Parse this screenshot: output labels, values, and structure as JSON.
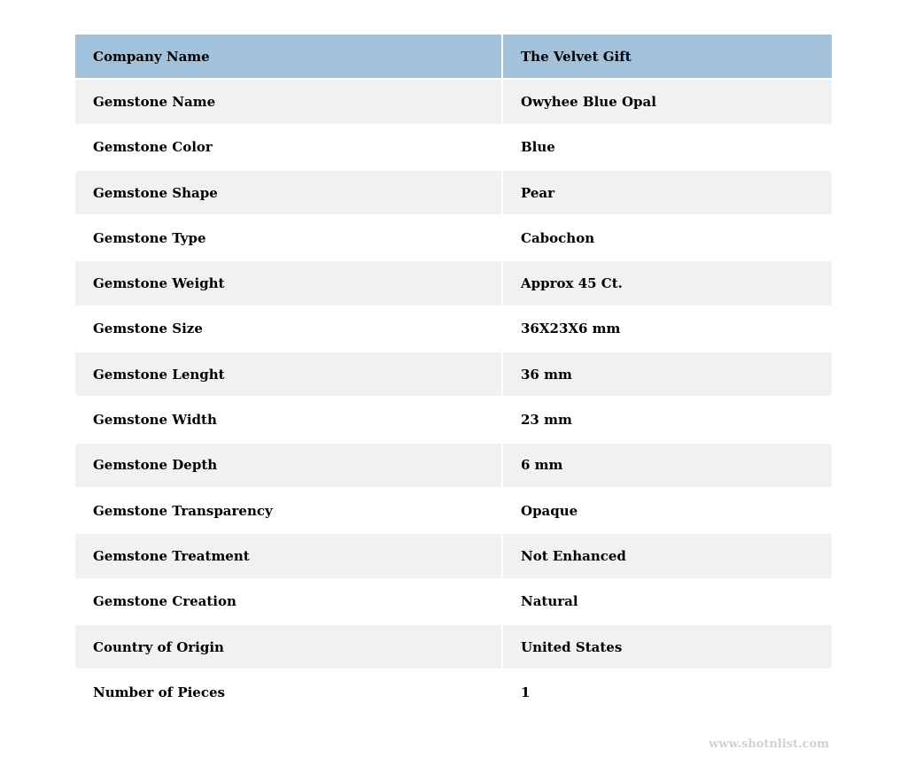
{
  "colors": {
    "header": "#a2c2dc",
    "stripe": "#f1f1f1"
  },
  "rows": [
    [
      "Company Name",
      "The Velvet Gift"
    ],
    [
      "Gemstone Name",
      "Owyhee Blue Opal"
    ],
    [
      "Gemstone Color",
      "Blue"
    ],
    [
      "Gemstone Shape",
      "Pear"
    ],
    [
      "Gemstone Type",
      "Cabochon"
    ],
    [
      "Gemstone Weight",
      "Approx 45 Ct."
    ],
    [
      "Gemstone Size",
      "36X23X6 mm"
    ],
    [
      "Gemstone Lenght",
      "36 mm"
    ],
    [
      "Gemstone Width",
      "23 mm"
    ],
    [
      "Gemstone Depth",
      "6 mm"
    ],
    [
      "Gemstone Transparency",
      "Opaque"
    ],
    [
      "Gemstone Treatment",
      "Not Enhanced"
    ],
    [
      "Gemstone Creation",
      "Natural"
    ],
    [
      "Country of Origin",
      "United States"
    ],
    [
      "Number of Pieces",
      "1"
    ]
  ],
  "watermark": "www.shotnlist.com"
}
